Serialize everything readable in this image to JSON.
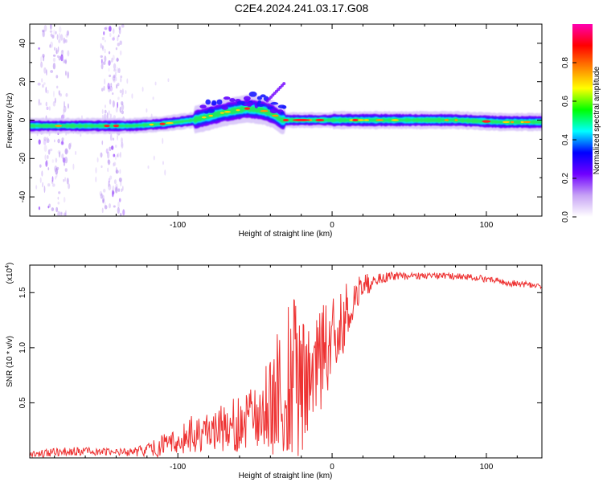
{
  "title": "C2E4.2024.241.03.17.G08",
  "chart_data": [
    {
      "type": "heatmap",
      "xlabel": "Height of straight line (km)",
      "ylabel": "Frequency (Hz)",
      "xlim": [
        -196,
        136
      ],
      "ylim": [
        -50,
        50
      ],
      "x_ticks": [
        -100,
        0,
        100
      ],
      "x_tick_labels": [
        "-100",
        "0",
        "100"
      ],
      "y_ticks": [
        -40,
        -20,
        0,
        20,
        40
      ],
      "y_tick_labels": [
        "-40",
        "-20",
        "0",
        "20",
        "40"
      ],
      "colorbar": {
        "label": "Normalized spectral amplitude",
        "range": [
          0,
          1
        ],
        "ticks": [
          0.0,
          0.2,
          0.4,
          0.6,
          0.8
        ],
        "tick_labels": [
          "0.0",
          "0.2",
          "0.4",
          "0.6",
          "0.8"
        ],
        "colors": [
          "#ffffff",
          "#c7a3f5",
          "#7000ff",
          "#0000ff",
          "#00ffff",
          "#00ff00",
          "#ffff00",
          "#ff8000",
          "#ff0000",
          "#ff00b0"
        ]
      },
      "ridge": {
        "x": [
          -196,
          -170,
          -150,
          -130,
          -110,
          -90,
          -70,
          -55,
          -45,
          -38,
          -33,
          -28,
          -20,
          -10,
          0,
          20,
          50,
          80,
          110,
          136
        ],
        "y": [
          -3,
          -3,
          -3,
          -3,
          -2,
          0,
          4,
          6,
          5,
          3,
          0,
          0,
          0,
          0,
          0,
          0,
          0,
          0,
          -1,
          -1
        ]
      },
      "grid": false
    },
    {
      "type": "line",
      "xlabel": "Height of straight line (km)",
      "ylabel": "SNR (10 * v/v)",
      "y_scale_label": "(x10",
      "y_scale_exp": "4",
      "xlim": [
        -196,
        136
      ],
      "ylim": [
        0,
        17500
      ],
      "x_ticks": [
        -100,
        0,
        100
      ],
      "x_tick_labels": [
        "-100",
        "0",
        "100"
      ],
      "y_ticks": [
        5000,
        10000,
        15000
      ],
      "y_tick_labels": [
        "0.5",
        "1.0",
        "1.5"
      ],
      "color": "#ee3333",
      "envelope": {
        "x": [
          -196,
          -180,
          -160,
          -140,
          -130,
          -120,
          -110,
          -100,
          -90,
          -80,
          -70,
          -60,
          -50,
          -45,
          -40,
          -35,
          -30,
          -25,
          -20,
          -15,
          -10,
          -5,
          0,
          5,
          10,
          15,
          20,
          30,
          40,
          50,
          60,
          70,
          80,
          90,
          100,
          110,
          120,
          136
        ],
        "mean": [
          300,
          500,
          600,
          500,
          500,
          700,
          1100,
          1600,
          2100,
          2500,
          2800,
          3100,
          3600,
          4000,
          4800,
          5500,
          6200,
          6800,
          7200,
          7800,
          8500,
          9500,
          10500,
          11800,
          13000,
          14500,
          15500,
          16300,
          16500,
          16500,
          16500,
          16500,
          16500,
          16400,
          16200,
          16000,
          15800,
          15600
        ],
        "amp": [
          300,
          400,
          400,
          300,
          400,
          700,
          1000,
          1400,
          1800,
          2000,
          2200,
          2600,
          3200,
          3600,
          4500,
          6000,
          7000,
          8000,
          7000,
          6000,
          5000,
          4500,
          4000,
          3500,
          3000,
          2000,
          1200,
          500,
          400,
          300,
          300,
          300,
          300,
          300,
          300,
          300,
          300,
          300
        ]
      },
      "grid": false
    }
  ]
}
